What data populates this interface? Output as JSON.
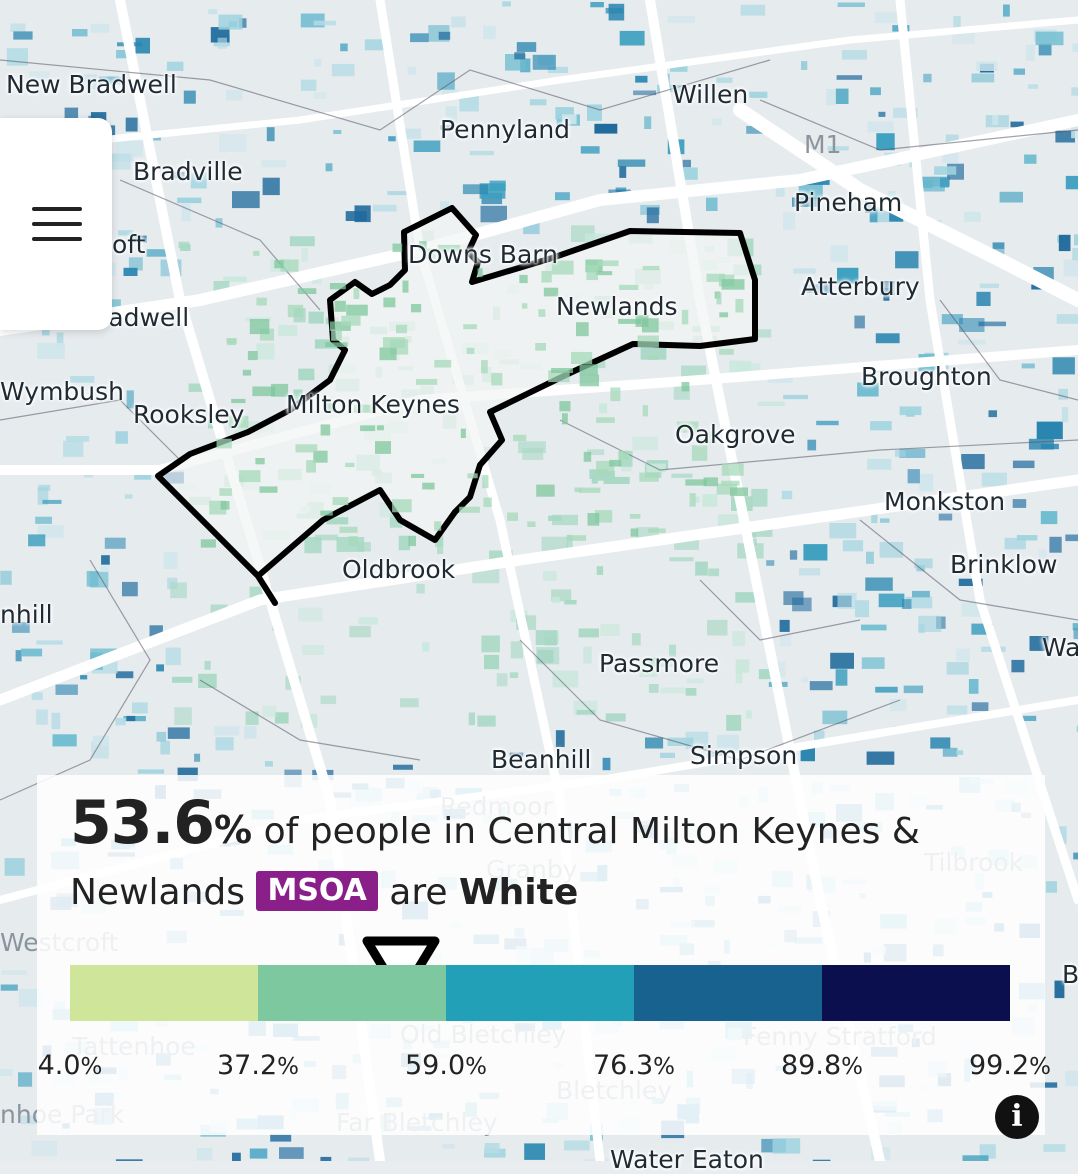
{
  "map": {
    "places": [
      {
        "id": "new-bradwell",
        "name": "New Bradwell"
      },
      {
        "id": "willen",
        "name": "Willen"
      },
      {
        "id": "pennyland",
        "name": "Pennyland"
      },
      {
        "id": "m1",
        "name": "M1"
      },
      {
        "id": "bradville",
        "name": "Bradville"
      },
      {
        "id": "pineham",
        "name": "Pineham"
      },
      {
        "id": "downs-barn",
        "name": "Downs Barn"
      },
      {
        "id": "oft",
        "name": "oft"
      },
      {
        "id": "atterbury",
        "name": "Atterbury"
      },
      {
        "id": "newlands",
        "name": "Newlands"
      },
      {
        "id": "bradwell",
        "name": "radwell"
      },
      {
        "id": "broughton",
        "name": "Broughton"
      },
      {
        "id": "wymbush",
        "name": "Wymbush"
      },
      {
        "id": "rooksley",
        "name": "Rooksley"
      },
      {
        "id": "milton-keynes",
        "name": "Milton Keynes"
      },
      {
        "id": "oakgrove",
        "name": "Oakgrove"
      },
      {
        "id": "monkston",
        "name": "Monkston"
      },
      {
        "id": "oldbrook",
        "name": "Oldbrook"
      },
      {
        "id": "brinklow",
        "name": "Brinklow"
      },
      {
        "id": "hill",
        "name": "nhill"
      },
      {
        "id": "passmore",
        "name": "Passmore"
      },
      {
        "id": "wa",
        "name": "Wa"
      },
      {
        "id": "beanhill",
        "name": "Beanhill"
      },
      {
        "id": "simpson",
        "name": "Simpson"
      },
      {
        "id": "redmoor",
        "name": "Redmoor"
      },
      {
        "id": "granby",
        "name": "Granby"
      },
      {
        "id": "tilbrook",
        "name": "Tilbrook"
      },
      {
        "id": "westcroft",
        "name": "Westcroft"
      },
      {
        "id": "b",
        "name": "B"
      },
      {
        "id": "tattenhoe",
        "name": "Tattenhoe"
      },
      {
        "id": "old-bletchley",
        "name": "Old Bletchley"
      },
      {
        "id": "fenny-stratford",
        "name": "Fenny Stratford"
      },
      {
        "id": "bletchley",
        "name": "Bletchley"
      },
      {
        "id": "tattenhoe-park",
        "name": "nhoe Park"
      },
      {
        "id": "far-bletchley",
        "name": "Far Bletchley"
      },
      {
        "id": "water-eaton",
        "name": "Water Eaton"
      }
    ]
  },
  "menu": {
    "icon": "hamburger-menu-icon"
  },
  "summary": {
    "value": "53.6",
    "unit": "%",
    "text_before_area": "of people in Central Milton Keynes & Newlands",
    "area_type": "MSOA",
    "text_after_area": "are",
    "category": "White"
  },
  "legend": {
    "colors": [
      "#cfe59a",
      "#7ec8a0",
      "#21a0b8",
      "#17628f",
      "#0b0f4d"
    ],
    "breaks": [
      {
        "value": "4.0",
        "unit": "%"
      },
      {
        "value": "37.2",
        "unit": "%"
      },
      {
        "value": "59.0",
        "unit": "%"
      },
      {
        "value": "76.3",
        "unit": "%"
      },
      {
        "value": "89.8",
        "unit": "%"
      },
      {
        "value": "99.2",
        "unit": "%"
      }
    ],
    "selected_value": 53.6
  },
  "info_icon": "info-icon",
  "info_label": "i"
}
